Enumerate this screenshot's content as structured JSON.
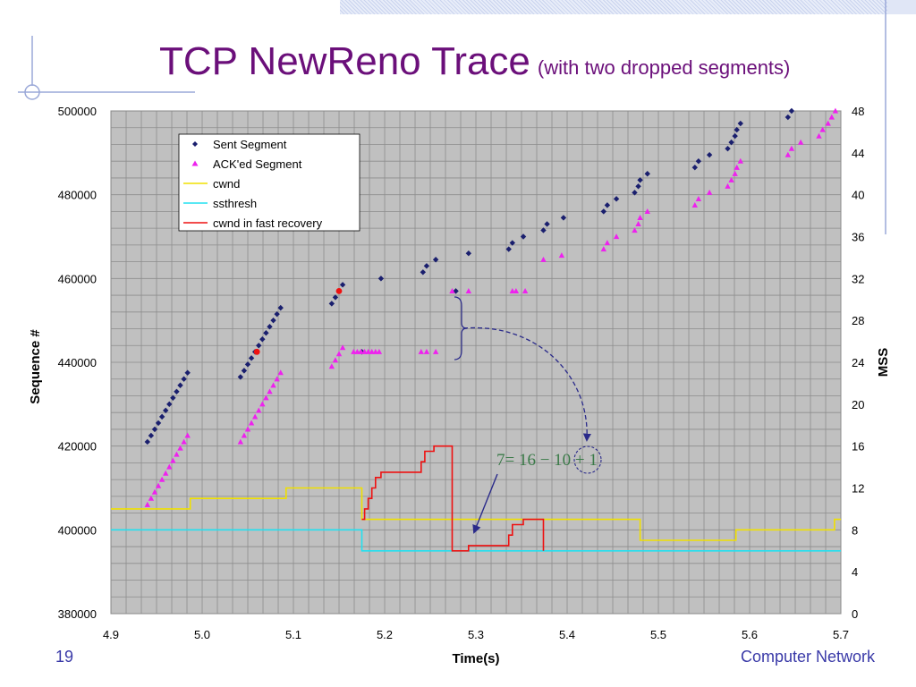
{
  "slide": {
    "title": "TCP NewReno Trace",
    "subtitle": "(with two dropped segments)",
    "page_number": "19",
    "footer": "Computer Network"
  },
  "colors": {
    "sent": "#1a1f6e",
    "acked": "#ee22ee",
    "cwnd": "#f0e000",
    "ssthresh": "#22e0f0",
    "fast_recovery": "#ee1111",
    "plot_bg": "#c0c0c0",
    "title": "#6b0f7a",
    "annotation": "#3a7a48",
    "arrow": "#2a2a8a"
  },
  "chart_data": {
    "type": "scatter",
    "title": "",
    "xlabel": "Time(s)",
    "ylabel": "Sequence #",
    "y2label": "MSS",
    "xlim": [
      4.9,
      5.7
    ],
    "ylim": [
      380000,
      500000
    ],
    "y2lim": [
      0,
      48
    ],
    "xticks": [
      "4.9",
      "5.0",
      "5.1",
      "5.2",
      "5.3",
      "5.4",
      "5.5",
      "5.6",
      "5.7"
    ],
    "yticks": [
      "380000",
      "400000",
      "420000",
      "440000",
      "460000",
      "480000",
      "500000"
    ],
    "y2ticks": [
      "0",
      "4",
      "8",
      "12",
      "16",
      "20",
      "24",
      "28",
      "32",
      "36",
      "40",
      "44",
      "48"
    ],
    "grid": true,
    "legend_position": "top-left",
    "legend": [
      "Sent Segment",
      "ACK'ed Segment",
      "cwnd",
      "ssthresh",
      "cwnd in fast recovery"
    ],
    "series": [
      {
        "name": "Sent Segment",
        "marker": "diamond",
        "points": [
          [
            4.94,
            421000
          ],
          [
            4.944,
            422500
          ],
          [
            4.948,
            424000
          ],
          [
            4.952,
            425500
          ],
          [
            4.956,
            427000
          ],
          [
            4.96,
            428500
          ],
          [
            4.964,
            430000
          ],
          [
            4.968,
            431500
          ],
          [
            4.972,
            433000
          ],
          [
            4.976,
            434500
          ],
          [
            4.98,
            436000
          ],
          [
            4.984,
            437500
          ],
          [
            5.042,
            436500
          ],
          [
            5.046,
            438000
          ],
          [
            5.05,
            439500
          ],
          [
            5.054,
            441000
          ],
          [
            5.058,
            442500
          ],
          [
            5.062,
            444000
          ],
          [
            5.066,
            445500
          ],
          [
            5.07,
            447000
          ],
          [
            5.074,
            448500
          ],
          [
            5.078,
            450000
          ],
          [
            5.082,
            451500
          ],
          [
            5.086,
            453000
          ],
          [
            5.142,
            454000
          ],
          [
            5.146,
            455500
          ],
          [
            5.15,
            457000
          ],
          [
            5.154,
            458500
          ],
          [
            5.175,
            442500
          ],
          [
            5.196,
            460000
          ],
          [
            5.242,
            461500
          ],
          [
            5.246,
            463000
          ],
          [
            5.256,
            464500
          ],
          [
            5.278,
            457000
          ],
          [
            5.292,
            466000
          ],
          [
            5.336,
            467000
          ],
          [
            5.34,
            468500
          ],
          [
            5.352,
            470000
          ],
          [
            5.374,
            471500
          ],
          [
            5.378,
            473000
          ],
          [
            5.396,
            474500
          ],
          [
            5.44,
            476000
          ],
          [
            5.444,
            477500
          ],
          [
            5.454,
            479000
          ],
          [
            5.474,
            480500
          ],
          [
            5.478,
            482000
          ],
          [
            5.48,
            483500
          ],
          [
            5.488,
            485000
          ],
          [
            5.54,
            486500
          ],
          [
            5.544,
            488000
          ],
          [
            5.556,
            489500
          ],
          [
            5.576,
            491000
          ],
          [
            5.58,
            492500
          ],
          [
            5.584,
            494000
          ],
          [
            5.586,
            495500
          ],
          [
            5.59,
            497000
          ],
          [
            5.642,
            498500
          ],
          [
            5.646,
            500000
          ]
        ]
      },
      {
        "name": "ACK'ed Segment",
        "marker": "triangle",
        "points": [
          [
            4.94,
            406000
          ],
          [
            4.944,
            407500
          ],
          [
            4.948,
            409000
          ],
          [
            4.952,
            410500
          ],
          [
            4.956,
            412000
          ],
          [
            4.96,
            413500
          ],
          [
            4.964,
            415000
          ],
          [
            4.968,
            416500
          ],
          [
            4.972,
            418000
          ],
          [
            4.976,
            419500
          ],
          [
            4.98,
            421000
          ],
          [
            4.984,
            422500
          ],
          [
            5.042,
            421000
          ],
          [
            5.046,
            422500
          ],
          [
            5.05,
            424000
          ],
          [
            5.054,
            425500
          ],
          [
            5.058,
            427000
          ],
          [
            5.062,
            428500
          ],
          [
            5.066,
            430000
          ],
          [
            5.07,
            431500
          ],
          [
            5.074,
            433000
          ],
          [
            5.078,
            434500
          ],
          [
            5.082,
            436000
          ],
          [
            5.086,
            437500
          ],
          [
            5.142,
            439000
          ],
          [
            5.146,
            440500
          ],
          [
            5.15,
            442000
          ],
          [
            5.154,
            443500
          ],
          [
            5.166,
            442500
          ],
          [
            5.17,
            442500
          ],
          [
            5.174,
            442500
          ],
          [
            5.178,
            442500
          ],
          [
            5.182,
            442500
          ],
          [
            5.186,
            442500
          ],
          [
            5.19,
            442500
          ],
          [
            5.194,
            442500
          ],
          [
            5.24,
            442500
          ],
          [
            5.246,
            442500
          ],
          [
            5.256,
            442500
          ],
          [
            5.274,
            457000
          ],
          [
            5.292,
            457000
          ],
          [
            5.34,
            457000
          ],
          [
            5.344,
            457000
          ],
          [
            5.354,
            457000
          ],
          [
            5.374,
            464500
          ],
          [
            5.394,
            465500
          ],
          [
            5.44,
            467000
          ],
          [
            5.444,
            468500
          ],
          [
            5.454,
            470000
          ],
          [
            5.474,
            471500
          ],
          [
            5.478,
            473000
          ],
          [
            5.48,
            474500
          ],
          [
            5.488,
            476000
          ],
          [
            5.54,
            477500
          ],
          [
            5.544,
            479000
          ],
          [
            5.556,
            480500
          ],
          [
            5.576,
            482000
          ],
          [
            5.58,
            483500
          ],
          [
            5.584,
            485000
          ],
          [
            5.586,
            486500
          ],
          [
            5.59,
            488000
          ],
          [
            5.642,
            489500
          ],
          [
            5.646,
            491000
          ],
          [
            5.656,
            492500
          ],
          [
            5.676,
            494000
          ],
          [
            5.68,
            495500
          ],
          [
            5.686,
            497000
          ],
          [
            5.69,
            498500
          ],
          [
            5.694,
            500000
          ]
        ]
      },
      {
        "name": "cwnd",
        "axis": "right",
        "type": "step",
        "points": [
          [
            4.9,
            10
          ],
          [
            4.987,
            10
          ],
          [
            4.987,
            11
          ],
          [
            5.092,
            11
          ],
          [
            5.092,
            12
          ],
          [
            5.175,
            12
          ],
          [
            5.175,
            9
          ],
          [
            5.48,
            9
          ],
          [
            5.48,
            7
          ],
          [
            5.585,
            7
          ],
          [
            5.585,
            8
          ],
          [
            5.693,
            8
          ],
          [
            5.693,
            9
          ],
          [
            5.7,
            9
          ]
        ]
      },
      {
        "name": "ssthresh",
        "axis": "right",
        "type": "step",
        "points": [
          [
            4.9,
            8
          ],
          [
            5.175,
            8
          ],
          [
            5.175,
            6
          ],
          [
            5.7,
            6
          ]
        ]
      },
      {
        "name": "cwnd in fast recovery",
        "axis": "right",
        "type": "step",
        "points": [
          [
            5.175,
            9
          ],
          [
            5.178,
            9
          ],
          [
            5.178,
            10
          ],
          [
            5.182,
            10
          ],
          [
            5.182,
            11
          ],
          [
            5.186,
            11
          ],
          [
            5.186,
            12
          ],
          [
            5.19,
            12
          ],
          [
            5.19,
            13
          ],
          [
            5.196,
            13
          ],
          [
            5.196,
            13.5
          ],
          [
            5.24,
            13.5
          ],
          [
            5.24,
            14.5
          ],
          [
            5.244,
            14.5
          ],
          [
            5.244,
            15.5
          ],
          [
            5.254,
            15.5
          ],
          [
            5.254,
            16
          ],
          [
            5.274,
            16
          ],
          [
            5.274,
            6
          ],
          [
            5.292,
            6
          ],
          [
            5.292,
            6.5
          ],
          [
            5.336,
            6.5
          ],
          [
            5.336,
            7.5
          ],
          [
            5.34,
            7.5
          ],
          [
            5.34,
            8.5
          ],
          [
            5.352,
            8.5
          ],
          [
            5.352,
            9
          ],
          [
            5.374,
            9
          ],
          [
            5.374,
            6
          ]
        ]
      }
    ],
    "highlighted_points": [
      [
        5.06,
        442500
      ],
      [
        5.15,
        457000
      ]
    ],
    "annotation": "7= 16 − 10 + 1"
  }
}
